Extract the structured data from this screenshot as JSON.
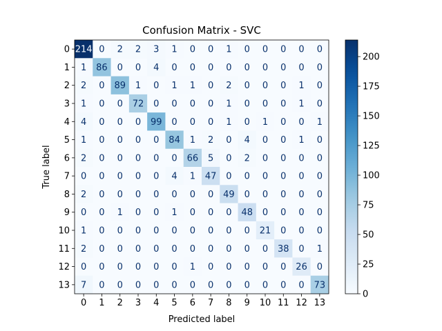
{
  "chart_data": {
    "type": "heatmap",
    "title": "Confusion Matrix - SVC",
    "xlabel": "Predicted label",
    "ylabel": "True label",
    "x_categories": [
      "0",
      "1",
      "2",
      "3",
      "4",
      "5",
      "6",
      "7",
      "8",
      "9",
      "10",
      "11",
      "12",
      "13"
    ],
    "y_categories": [
      "0",
      "1",
      "2",
      "3",
      "4",
      "5",
      "6",
      "7",
      "8",
      "9",
      "10",
      "11",
      "12",
      "13"
    ],
    "values": [
      [
        214,
        0,
        2,
        2,
        3,
        1,
        0,
        0,
        1,
        0,
        0,
        0,
        0,
        0
      ],
      [
        1,
        86,
        0,
        0,
        4,
        0,
        0,
        0,
        0,
        0,
        0,
        0,
        0,
        0
      ],
      [
        2,
        0,
        89,
        1,
        0,
        1,
        1,
        0,
        2,
        0,
        0,
        0,
        1,
        0
      ],
      [
        1,
        0,
        0,
        72,
        0,
        0,
        0,
        0,
        1,
        0,
        0,
        0,
        1,
        0
      ],
      [
        4,
        0,
        0,
        0,
        99,
        0,
        0,
        0,
        1,
        0,
        1,
        0,
        0,
        1
      ],
      [
        1,
        0,
        0,
        0,
        0,
        84,
        1,
        2,
        0,
        4,
        0,
        0,
        1,
        0
      ],
      [
        2,
        0,
        0,
        0,
        0,
        0,
        66,
        5,
        0,
        2,
        0,
        0,
        0,
        0
      ],
      [
        0,
        0,
        0,
        0,
        0,
        4,
        1,
        47,
        0,
        0,
        0,
        0,
        0,
        0
      ],
      [
        2,
        0,
        0,
        0,
        0,
        0,
        0,
        0,
        49,
        0,
        0,
        0,
        0,
        0
      ],
      [
        0,
        0,
        1,
        0,
        0,
        1,
        0,
        0,
        0,
        48,
        0,
        0,
        0,
        0
      ],
      [
        1,
        0,
        0,
        0,
        0,
        0,
        0,
        0,
        0,
        0,
        21,
        0,
        0,
        0
      ],
      [
        2,
        0,
        0,
        0,
        0,
        0,
        0,
        0,
        0,
        0,
        0,
        38,
        0,
        1
      ],
      [
        0,
        0,
        0,
        0,
        0,
        0,
        1,
        0,
        0,
        0,
        0,
        0,
        26,
        0
      ],
      [
        7,
        0,
        0,
        0,
        0,
        0,
        0,
        0,
        0,
        0,
        0,
        0,
        0,
        73
      ]
    ],
    "colormap": "Blues",
    "vmin": 0,
    "vmax": 214,
    "colorbar_ticks": [
      0,
      25,
      50,
      75,
      100,
      125,
      150,
      175,
      200
    ],
    "grid": false,
    "colorbar_placement": "right"
  }
}
